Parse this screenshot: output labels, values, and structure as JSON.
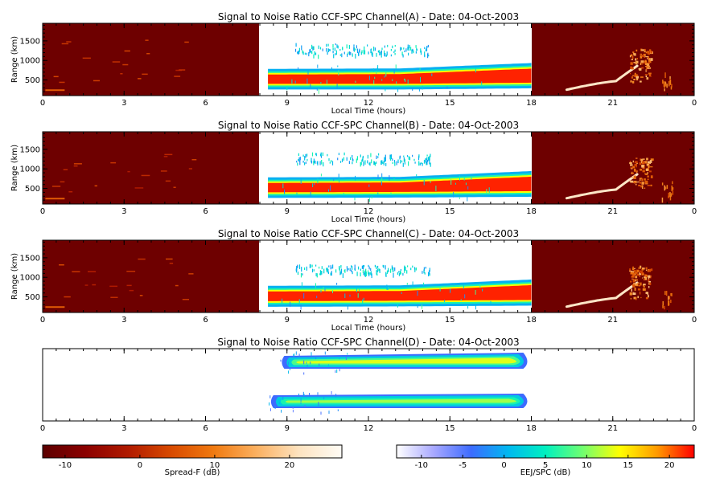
{
  "chart_data": [
    {
      "type": "heatmap",
      "title": "Signal to Noise Ratio CCF-SPC Channel(A) - Date: 04-Oct-2003",
      "xlabel": "Local Time (hours)",
      "ylabel": "Range (km)",
      "xlim": [
        0,
        24
      ],
      "x_ticks": [
        "0",
        "3",
        "6",
        "9",
        "12",
        "15",
        "18",
        "21",
        "0"
      ],
      "ylim": [
        100,
        1950
      ],
      "y_ticks": [
        "500",
        "1000",
        "1500"
      ],
      "segments": [
        {
          "from": 0,
          "to": 8,
          "colorbar": "Spread-F (dB)"
        },
        {
          "from": 8,
          "to": 18,
          "colorbar": "EEJ/SPC (dB)"
        },
        {
          "from": 18,
          "to": 24,
          "colorbar": "Spread-F (dB)"
        }
      ],
      "features": [
        {
          "kind": "band",
          "t_start": 8.3,
          "t_end": 18,
          "range_low": [
            400,
            400,
            430
          ],
          "range_high": [
            640,
            650,
            790
          ],
          "snr_db": 22
        },
        {
          "kind": "scatter",
          "t_start": 9.3,
          "t_end": 14.3,
          "range_low": [
            1150,
            1150
          ],
          "range_high": [
            1450,
            1400
          ],
          "snr_db": -2
        },
        {
          "kind": "spreadF_plume",
          "t_start": 19.3,
          "t_end": 22.5,
          "range_min": 250,
          "range_max": 1300,
          "snr_db": 18
        }
      ]
    },
    {
      "type": "heatmap",
      "title": "Signal to Noise Ratio CCF-SPC Channel(B) - Date: 04-Oct-2003",
      "xlabel": "Local Time (hours)",
      "ylabel": "Range (km)",
      "xlim": [
        0,
        24
      ],
      "x_ticks": [
        "0",
        "3",
        "6",
        "9",
        "12",
        "15",
        "18",
        "21",
        "0"
      ],
      "ylim": [
        100,
        1950
      ],
      "y_ticks": [
        "500",
        "1000",
        "1500"
      ],
      "segments": [
        {
          "from": 0,
          "to": 8,
          "colorbar": "Spread-F (dB)"
        },
        {
          "from": 8,
          "to": 18,
          "colorbar": "EEJ/SPC (dB)"
        },
        {
          "from": 18,
          "to": 24,
          "colorbar": "Spread-F (dB)"
        }
      ],
      "features": [
        {
          "kind": "band",
          "t_start": 8.3,
          "t_end": 18,
          "range_low": [
            400,
            410,
            430
          ],
          "range_high": [
            640,
            650,
            800
          ],
          "snr_db": 22
        },
        {
          "kind": "scatter",
          "t_start": 9.3,
          "t_end": 14.3,
          "range_low": [
            1150,
            1150
          ],
          "range_high": [
            1450,
            1400
          ],
          "snr_db": -2
        },
        {
          "kind": "spreadF_plume",
          "t_start": 19.3,
          "t_end": 22.5,
          "range_min": 250,
          "range_max": 1300,
          "snr_db": 18
        }
      ]
    },
    {
      "type": "heatmap",
      "title": "Signal to Noise Ratio CCF-SPC Channel(C) - Date: 04-Oct-2003",
      "xlabel": "Local Time (hours)",
      "ylabel": "Range (km)",
      "xlim": [
        0,
        24
      ],
      "x_ticks": [
        "0",
        "3",
        "6",
        "9",
        "12",
        "15",
        "18",
        "21",
        "0"
      ],
      "ylim": [
        100,
        1950
      ],
      "y_ticks": [
        "500",
        "1000",
        "1500"
      ],
      "segments": [
        {
          "from": 0,
          "to": 8,
          "colorbar": "Spread-F (dB)"
        },
        {
          "from": 8,
          "to": 18,
          "colorbar": "EEJ/SPC (dB)"
        },
        {
          "from": 18,
          "to": 24,
          "colorbar": "Spread-F (dB)"
        }
      ],
      "features": [
        {
          "kind": "band",
          "t_start": 8.3,
          "t_end": 18,
          "range_low": [
            390,
            400,
            420
          ],
          "range_high": [
            640,
            650,
            800
          ],
          "snr_db": 22
        },
        {
          "kind": "scatter",
          "t_start": 9.3,
          "t_end": 14.3,
          "range_low": [
            1100,
            1100
          ],
          "range_high": [
            1350,
            1300
          ],
          "snr_db": -2
        },
        {
          "kind": "spreadF_plume",
          "t_start": 19.3,
          "t_end": 22.5,
          "range_min": 250,
          "range_max": 1300,
          "snr_db": 18
        }
      ]
    },
    {
      "type": "heatmap",
      "title": "Signal to Noise Ratio CCF-SPC Channel(D) - Date: 04-Oct-2003",
      "xlim": [
        0,
        24
      ],
      "x_ticks": [
        "0",
        "3",
        "6",
        "9",
        "12",
        "15",
        "18",
        "21",
        "0"
      ],
      "features": [
        {
          "kind": "band",
          "t_start": 8.9,
          "t_end": 18,
          "level": "upper",
          "snr_db": 8
        },
        {
          "kind": "band",
          "t_start": 8.5,
          "t_end": 18,
          "level": "lower",
          "snr_db": 6
        }
      ]
    }
  ],
  "colorbars": [
    {
      "name": "Spread-F",
      "label": "Spread-F (dB)",
      "range": [
        -13,
        27
      ],
      "ticks": [
        "-10",
        "0",
        "10",
        "20"
      ],
      "tick_values": [
        -10,
        0,
        10,
        20
      ],
      "colors": [
        "#5c0000",
        "#8b0000",
        "#b01a00",
        "#d84a00",
        "#f07a10",
        "#fbb060",
        "#fde3c0",
        "#fffcf5"
      ]
    },
    {
      "name": "EEJ/SPC",
      "label": "EEJ/SPC (dB)",
      "range": [
        -13,
        23
      ],
      "ticks": [
        "-10",
        "-5",
        "0",
        "5",
        "10",
        "15",
        "20"
      ],
      "tick_values": [
        -10,
        -5,
        0,
        5,
        10,
        15,
        20
      ],
      "colors": [
        "#ffffff",
        "#a8a8ff",
        "#3d6bff",
        "#00b8f0",
        "#00f0c0",
        "#70ff70",
        "#ffff00",
        "#ff9a00",
        "#ff0000"
      ]
    }
  ]
}
